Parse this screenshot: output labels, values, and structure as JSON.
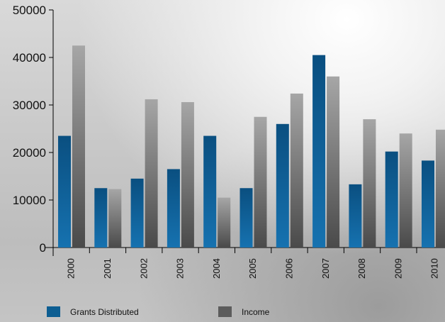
{
  "chart_data": {
    "type": "bar",
    "categories": [
      "2000",
      "2001",
      "2002",
      "2003",
      "2004",
      "2005",
      "2006",
      "2007",
      "2008",
      "2009",
      "2010"
    ],
    "series": [
      {
        "name": "Grants Distributed",
        "color": "#0d5e92",
        "values": [
          23500,
          12500,
          14500,
          16500,
          23500,
          12500,
          26000,
          40500,
          13300,
          20200,
          18300
        ]
      },
      {
        "name": "Income",
        "color": "#5c5c5c",
        "values": [
          42500,
          12300,
          31200,
          30600,
          10500,
          27500,
          32400,
          36000,
          27000,
          24000,
          24800
        ]
      }
    ],
    "y_ticks": [
      "0",
      "10000",
      "20000",
      "30000",
      "40000",
      "50000"
    ],
    "ylim": [
      0,
      50000
    ],
    "grid": false,
    "legend_position": "bottom"
  }
}
